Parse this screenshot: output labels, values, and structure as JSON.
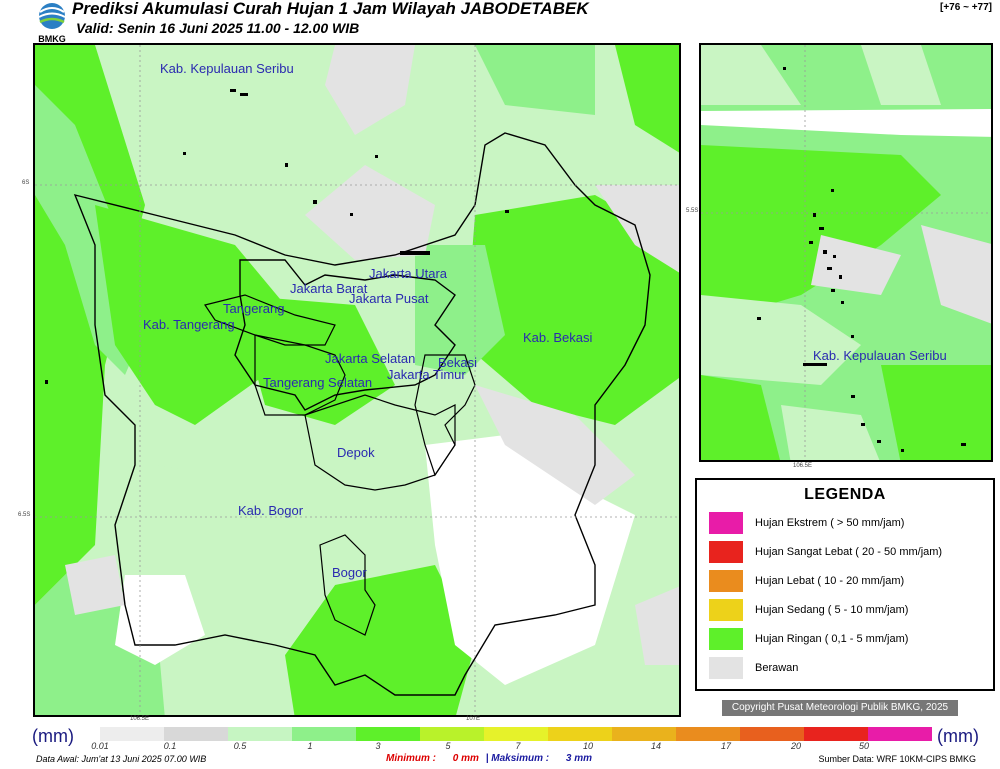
{
  "header": {
    "logo_text": "BMKG",
    "title": "Prediksi Akumulasi Curah Hujan 1 Jam Wilayah JABODETABEK",
    "subtitle": "Valid: Senin 16 Juni 2025 11.00 - 12.00 WIB",
    "code": "[+76 ~ +77]"
  },
  "map": {
    "regions": [
      "Kab. Kepulauan Seribu",
      "Jakarta Utara",
      "Jakarta Barat",
      "Jakarta Pusat",
      "Tangerang",
      "Kab. Tangerang",
      "Kab. Bekasi",
      "Jakarta Selatan",
      "Jakarta Timur",
      "Bekasi",
      "Tangerang Selatan",
      "Depok",
      "Kab. Bogor",
      "Bogor"
    ],
    "lat_labels": [
      "6S",
      "6.5S"
    ],
    "lon_labels": [
      "106.5E",
      "107E"
    ],
    "inset_region": "Kab. Kepulauan Seribu",
    "inset_lat_label": "5.5S",
    "inset_lon_label": "106.5E"
  },
  "legend": {
    "title": "LEGENDA",
    "items": [
      {
        "label": "Hujan Ekstrem ( > 50 mm/jam)",
        "color": "#e81ca8"
      },
      {
        "label": "Hujan Sangat Lebat ( 20 - 50 mm/jam)",
        "color": "#e8231e"
      },
      {
        "label": "Hujan Lebat ( 10 - 20 mm/jam)",
        "color": "#ea8c1e"
      },
      {
        "label": "Hujan Sedang ( 5 - 10 mm/jam)",
        "color": "#edd21a"
      },
      {
        "label": "Hujan Ringan ( 0,1 - 5 mm/jam)",
        "color": "#5ef02a"
      },
      {
        "label": "Berawan",
        "color": "#e3e3e3"
      }
    ]
  },
  "copyright": "Copyright Pusat Meteorologi Publik BMKG, 2025",
  "colorbar": {
    "unit": "(mm)",
    "ticks": [
      "0.01",
      "0.1",
      "0.5",
      "1",
      "3",
      "5",
      "7",
      "10",
      "14",
      "17",
      "20",
      "50"
    ],
    "colors": [
      "#ededed",
      "#d8d8d8",
      "#c6f5c2",
      "#8ef08a",
      "#5ef02a",
      "#b9f22a",
      "#e6f22a",
      "#edd21a",
      "#eab21c",
      "#ea8c1e",
      "#e8601e",
      "#e8231e",
      "#e81ca8"
    ]
  },
  "footer": {
    "data_awal": "Data Awal: Jum'at 13 Juni 2025 07.00 WIB",
    "min_label": "Minimum :",
    "min_value": "0 mm",
    "max_label": "Maksimum :",
    "max_value": "3 mm",
    "source": "Sumber Data: WRF 10KM-CIPS BMKG"
  }
}
